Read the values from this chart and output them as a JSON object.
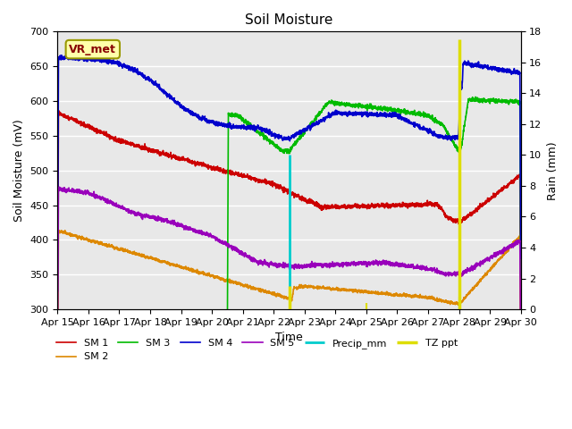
{
  "title": "Soil Moisture",
  "xlabel": "Time",
  "ylabel_left": "Soil Moisture (mV)",
  "ylabel_right": "Rain (mm)",
  "ylim_left": [
    300,
    700
  ],
  "ylim_right": [
    0,
    18
  ],
  "background_color": "#e8e8e8",
  "fig_bg": "#ffffff",
  "annotation_text": "VR_met",
  "annotation_bg": "#ffffaa",
  "annotation_border": "#999900",
  "annotation_text_color": "#880000",
  "x_tick_labels": [
    "Apr 15",
    "Apr 16",
    "Apr 17",
    "Apr 18",
    "Apr 19",
    "Apr 20",
    "Apr 21",
    "Apr 22",
    "Apr 23",
    "Apr 24",
    "Apr 25",
    "Apr 26",
    "Apr 27",
    "Apr 28",
    "Apr 29",
    "Apr 30"
  ],
  "legend_entries": [
    "SM 1",
    "SM 2",
    "SM 3",
    "SM 4",
    "SM 5",
    "Precip_mm",
    "TZ ppt"
  ],
  "line_colors": {
    "SM1": "#cc0000",
    "SM2": "#dd8800",
    "SM3": "#00bb00",
    "SM4": "#0000cc",
    "SM5": "#9900bb",
    "Precip": "#00cccc",
    "TZ": "#dddd00"
  },
  "yticks_left": [
    300,
    350,
    400,
    450,
    500,
    550,
    600,
    650,
    700
  ],
  "yticks_right": [
    0,
    2,
    4,
    6,
    8,
    10,
    12,
    14,
    16,
    18
  ]
}
